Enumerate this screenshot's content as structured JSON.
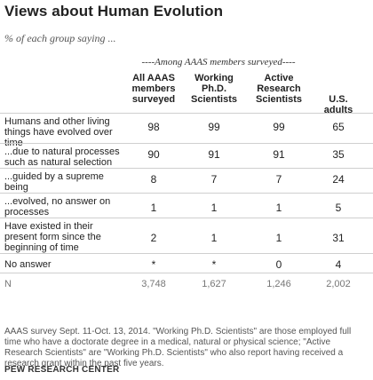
{
  "title": "Views about Human Evolution",
  "subtitle": "% of each group saying ...",
  "group_header": "----Among AAAS members surveyed----",
  "columns": [
    {
      "line1": "All AAAS",
      "line2": "members",
      "line3": "surveyed"
    },
    {
      "line1": "Working",
      "line2": "Ph.D.",
      "line3": "Scientists"
    },
    {
      "line1": "Active",
      "line2": "Research",
      "line3": "Scientists"
    },
    {
      "line1": "U.S. adults",
      "line2": "",
      "line3": ""
    }
  ],
  "rows": [
    {
      "label": "Humans and other living things have evolved over time",
      "values": [
        "98",
        "99",
        "99",
        "65"
      ]
    },
    {
      "label": "...due to natural processes such as natural selection",
      "values": [
        "90",
        "91",
        "91",
        "35"
      ]
    },
    {
      "label": "...guided by a supreme being",
      "values": [
        "8",
        "7",
        "7",
        "24"
      ]
    },
    {
      "label": "...evolved, no answer on processes",
      "values": [
        "1",
        "1",
        "1",
        "5"
      ]
    },
    {
      "label": "Have existed in their present form since the beginning of time",
      "values": [
        "2",
        "1",
        "1",
        "31"
      ]
    },
    {
      "label": "No answer",
      "values": [
        "*",
        "*",
        "0",
        "4"
      ]
    },
    {
      "label": "N",
      "values": [
        "3,748",
        "1,627",
        "1,246",
        "2,002"
      ]
    }
  ],
  "footnote": "AAAS survey Sept. 11-Oct. 13, 2014. \"Working Ph.D. Scientists\" are those employed full time who have a doctorate degree in a medical, natural or physical science; \"Active Research Scientists\" are \"Working Ph.D. Scientists\" who also report having received a research grant within the past five years.",
  "source": "PEW RESEARCH CENTER"
}
